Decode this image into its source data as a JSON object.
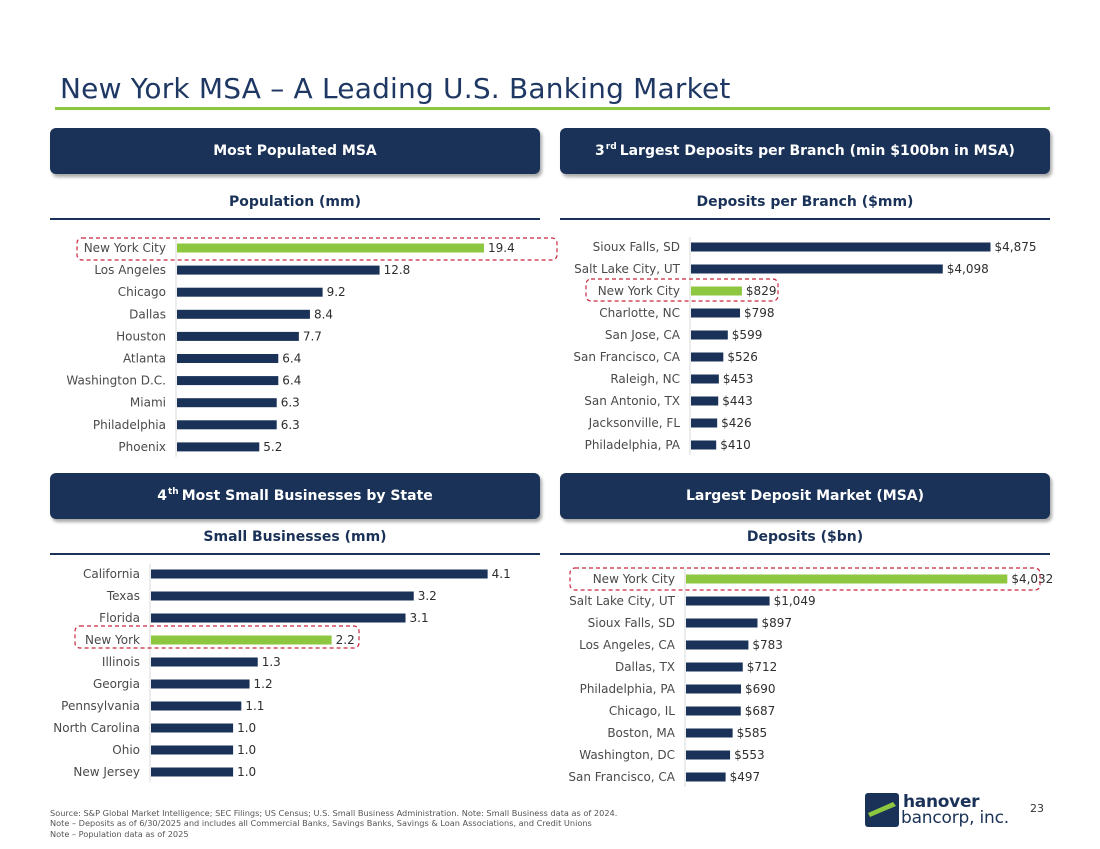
{
  "page": {
    "title": "New York MSA – A Leading U.S. Banking Market",
    "page_number": "23",
    "colors": {
      "navy": "#1a3258",
      "green": "#8dc63f",
      "highlight": "#c8273f"
    }
  },
  "banners": {
    "population": "Most Populated MSA",
    "deposits_per_branch_prefix": "3",
    "deposits_per_branch_sup": "rd",
    "deposits_per_branch_text": "Largest Deposits per Branch (min $100bn in MSA)",
    "small_business_prefix": "4",
    "small_business_sup": "th",
    "small_business_text": "Most Small Businesses by State",
    "deposit_market": "Largest Deposit Market (MSA)"
  },
  "chart_data": [
    {
      "type": "bar",
      "orientation": "horizontal",
      "title": "Population (mm)",
      "categories": [
        "New York City",
        "Los Angeles",
        "Chicago",
        "Dallas",
        "Houston",
        "Atlanta",
        "Washington D.C.",
        "Miami",
        "Philadelphia",
        "Phoenix"
      ],
      "values": [
        19.4,
        12.8,
        9.2,
        8.4,
        7.7,
        6.4,
        6.4,
        6.3,
        6.3,
        5.2
      ],
      "labels": [
        "19.4",
        "12.8",
        "9.2",
        "8.4",
        "7.7",
        "6.4",
        "6.4",
        "6.3",
        "6.3",
        "5.2"
      ],
      "highlight": "New York City",
      "xlim": [
        0,
        23
      ]
    },
    {
      "type": "bar",
      "orientation": "horizontal",
      "title": "Deposits per Branch ($mm)",
      "categories": [
        "Sioux Falls, SD",
        "Salt Lake City, UT",
        "New York City",
        "Charlotte, NC",
        "San Jose, CA",
        "San Francisco, CA",
        "Raleigh, NC",
        "San Antonio, TX",
        "Jacksonville, FL",
        "Philadelphia, PA"
      ],
      "values": [
        4875,
        4098,
        829,
        798,
        599,
        526,
        453,
        443,
        426,
        410
      ],
      "labels": [
        "$4,875",
        "$4,098",
        "$829",
        "$798",
        "$599",
        "$526",
        "$453",
        "$443",
        "$426",
        "$410"
      ],
      "highlight": "New York City",
      "xlim": [
        0,
        5860
      ]
    },
    {
      "type": "bar",
      "orientation": "horizontal",
      "title": "Small Businesses (mm)",
      "categories": [
        "California",
        "Texas",
        "Florida",
        "New York",
        "Illinois",
        "Georgia",
        "Pennsylvania",
        "North Carolina",
        "Ohio",
        "New Jersey"
      ],
      "values": [
        4.1,
        3.2,
        3.1,
        2.2,
        1.3,
        1.2,
        1.1,
        1.0,
        1.0,
        1.0
      ],
      "labels": [
        "4.1",
        "3.2",
        "3.1",
        "2.2",
        "1.3",
        "1.2",
        "1.1",
        "1.0",
        "1.0",
        "1.0"
      ],
      "highlight": "New York",
      "xlim": [
        0,
        4.75
      ]
    },
    {
      "type": "bar",
      "orientation": "horizontal",
      "title": "Deposits ($bn)",
      "categories": [
        "New York City",
        "Salt Lake City, UT",
        "Sioux Falls, SD",
        "Los Angeles, CA",
        "Dallas, TX",
        "Philadelphia, PA",
        "Chicago, IL",
        "Boston, MA",
        "Washington, DC",
        "San Francisco, CA"
      ],
      "values": [
        4032,
        1049,
        897,
        783,
        712,
        690,
        687,
        585,
        553,
        497
      ],
      "labels": [
        "$4,032",
        "$1,049",
        "$897",
        "$783",
        "$712",
        "$690",
        "$687",
        "$585",
        "$553",
        "$497"
      ],
      "highlight": "New York City",
      "xlim": [
        0,
        4580
      ]
    }
  ],
  "footnotes": [
    "Source: S&P Global Market Intelligence; SEC Filings; US Census; U.S. Small Business Administration. Note: Small Business data as of 2024.",
    "Note – Deposits as of 6/30/2025 and includes all Commercial Banks, Savings Banks, Savings & Loan Associations, and Credit Unions",
    "Note – Population data as of 2025"
  ],
  "logo": {
    "line1": "hanover",
    "line2": "bancorp, inc."
  }
}
